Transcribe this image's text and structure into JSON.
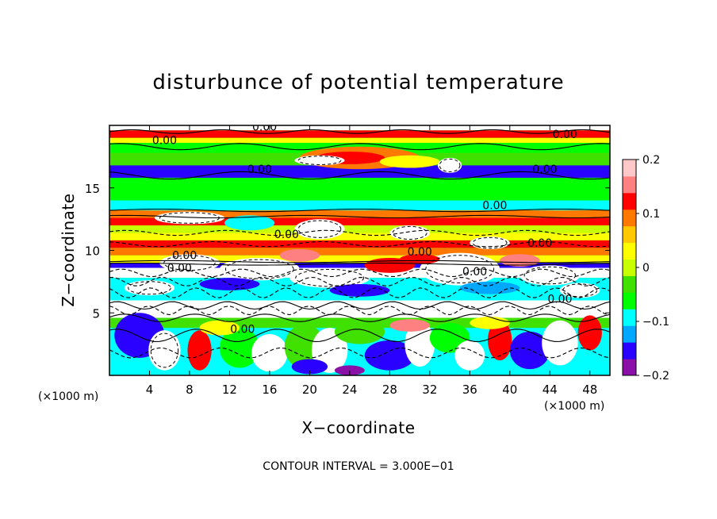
{
  "chart_data": {
    "type": "heatmap",
    "title": "disturbunce of potential temperature",
    "xlabel": "X−coordinate",
    "ylabel": "Z−coordinate",
    "x_unit": "(×1000 m)",
    "z_unit": "(×1000 m)",
    "x_range": [
      0,
      50
    ],
    "z_range": [
      0,
      20
    ],
    "x_ticks": [
      4,
      8,
      12,
      16,
      20,
      24,
      28,
      32,
      36,
      40,
      44,
      48
    ],
    "z_ticks": [
      5,
      10,
      15
    ],
    "x_tick_labels": [
      "4",
      "8",
      "12",
      "16",
      "20",
      "24",
      "28",
      "32",
      "36",
      "40",
      "44",
      "48"
    ],
    "z_tick_labels": [
      "5",
      "10",
      "15"
    ],
    "colorbar": {
      "range": [
        -0.2,
        0.2
      ],
      "tick_labels": [
        "0.2",
        "0.1",
        "0",
        "−0.1",
        "−0.2"
      ],
      "tick_values": [
        0.2,
        0.1,
        0,
        -0.1,
        -0.2
      ],
      "colors": [
        "#8a10a8",
        "#2a00ff",
        "#00a8ff",
        "#00ffff",
        "#00ff00",
        "#40e000",
        "#c8ff00",
        "#ffff00",
        "#ffc800",
        "#ff7800",
        "#ff0000",
        "#ff8080",
        "#ffc8c8"
      ]
    },
    "contour_interval_text": "CONTOUR INTERVAL = 3.000E−01",
    "contour_labels": [
      "0.00",
      "0.00",
      "0.00",
      "0.00",
      "0.00",
      "0.00",
      "0.00",
      "0.00",
      "0.00",
      "0.00",
      "0.00",
      "0.00",
      "0.00",
      "0.00"
    ],
    "colors": {
      "neutral": "#00ff00",
      "warm": "#ff0000",
      "cool": "#00ffff",
      "strong_negative": "#ffffff",
      "text": "#000000"
    }
  }
}
